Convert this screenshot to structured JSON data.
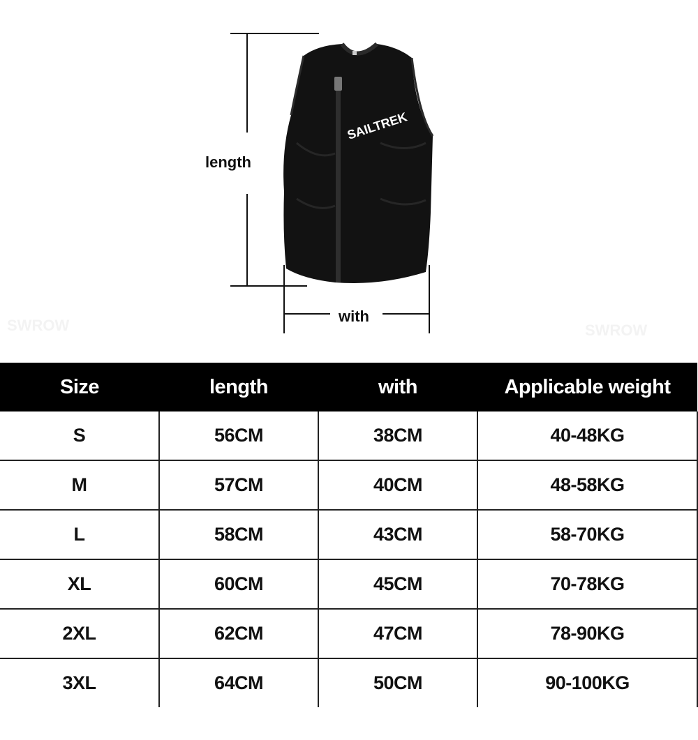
{
  "diagram": {
    "length_label": "length",
    "width_label": "with",
    "brand_on_vest": "SAILTREK",
    "watermark": "SWROW"
  },
  "table": {
    "headers": [
      "Size",
      "length",
      "with",
      "Applicable weight"
    ],
    "rows": [
      [
        "S",
        "56CM",
        "38CM",
        "40-48KG"
      ],
      [
        "M",
        "57CM",
        "40CM",
        "48-58KG"
      ],
      [
        "L",
        "58CM",
        "43CM",
        "58-70KG"
      ],
      [
        "XL",
        "60CM",
        "45CM",
        "70-78KG"
      ],
      [
        "2XL",
        "62CM",
        "47CM",
        "78-90KG"
      ],
      [
        "3XL",
        "64CM",
        "50CM",
        "90-100KG"
      ]
    ]
  }
}
